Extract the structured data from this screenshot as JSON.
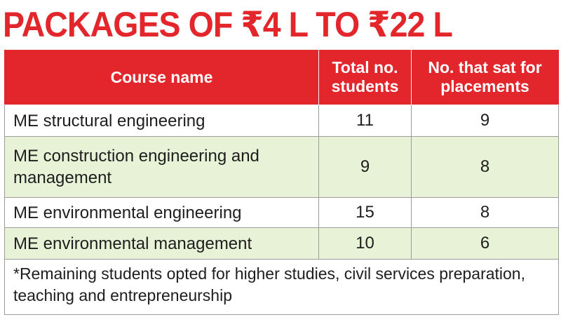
{
  "title": "PACKAGES OF ₹4 L TO ₹22 L",
  "table": {
    "headers": [
      "Course name",
      "Total no. students",
      "No. that sat for placements"
    ],
    "rows": [
      {
        "course": "ME structural engineering",
        "total": "11",
        "sat": "9"
      },
      {
        "course": "ME construction engineering and management",
        "total": "9",
        "sat": "8"
      },
      {
        "course": "ME environmental engineering",
        "total": "15",
        "sat": "8"
      },
      {
        "course": "ME environmental management",
        "total": "10",
        "sat": "6"
      }
    ],
    "footnote": "*Remaining students opted for higher studies, civil services preparation, teaching and entrepreneurship"
  },
  "colors": {
    "header_bg": "#e3262b",
    "title": "#e3262b",
    "alt_row_bg": "#e8f2d6"
  }
}
